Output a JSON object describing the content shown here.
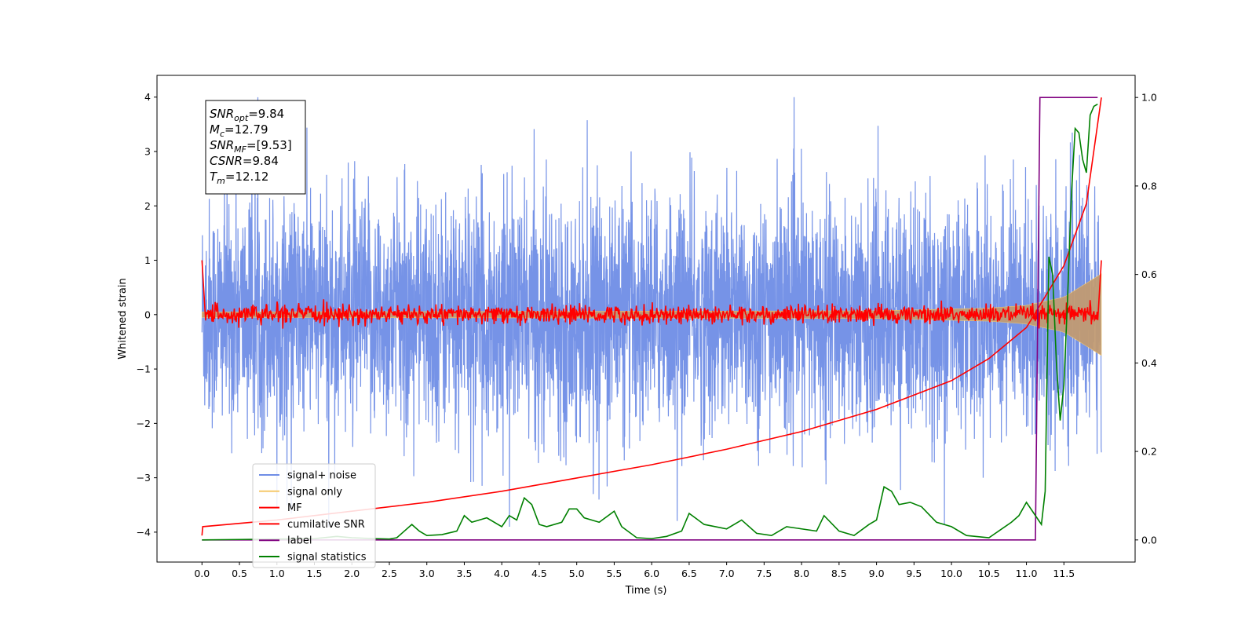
{
  "chart_data": {
    "type": "line",
    "title": "",
    "xlabel": "Time (s)",
    "ylabel": "Whitened strain",
    "xlim": [
      -0.6,
      12.45
    ],
    "ylim": [
      -4.55,
      4.4
    ],
    "y2lim": [
      -0.05,
      1.05
    ],
    "x_ticks": [
      "0.0",
      "0.5",
      "1.0",
      "1.5",
      "2.0",
      "2.5",
      "3.0",
      "3.5",
      "4.0",
      "4.5",
      "5.0",
      "5.5",
      "6.0",
      "6.5",
      "7.0",
      "7.5",
      "8.0",
      "8.5",
      "9.0",
      "9.5",
      "10.0",
      "10.5",
      "11.0",
      "11.5"
    ],
    "y_ticks": [
      "4",
      "3",
      "2",
      "1",
      "0",
      "−1",
      "−2",
      "−3",
      "−4"
    ],
    "y2_ticks": [
      "1.0",
      "0.8",
      "0.6",
      "0.4",
      "0.2",
      "0.0"
    ],
    "grid": false,
    "legend_position": "lower-left",
    "colors": {
      "signal_noise": "#6f8de6",
      "signal_only": "#f5c96b",
      "signal_only_overlap": "#c19b73",
      "mf": "#ff0000",
      "cumulative_snr": "#ff0000",
      "label": "#800080",
      "signal_statistics": "#008000"
    },
    "annotation": {
      "lines": [
        {
          "sym": "SNR",
          "sub": "opt",
          "rest": "=9.84"
        },
        {
          "sym": "M",
          "sub": "c",
          "rest": "=12.79"
        },
        {
          "sym": "SNR",
          "sub": "MF",
          "rest": "=[9.53]"
        },
        {
          "sym": "CSNR",
          "sub": "",
          "rest": "=9.84"
        },
        {
          "sym": "T",
          "sub": "m",
          "rest": "=12.12"
        }
      ]
    },
    "series": [
      {
        "name": "signal+ noise",
        "axis": "left",
        "description_range": [
          -2.5,
          2.6
        ],
        "x_range": [
          0.0,
          12.0
        ]
      },
      {
        "name": "signal only",
        "axis": "left",
        "envelope": [
          [
            0.0,
            0.05
          ],
          [
            9.0,
            0.07
          ],
          [
            10.5,
            0.12
          ],
          [
            11.0,
            0.17
          ],
          [
            11.5,
            0.32
          ],
          [
            12.0,
            0.75
          ]
        ]
      },
      {
        "name": "MF",
        "axis": "left",
        "start": [
          0.0,
          1.0
        ],
        "baseline": 0.0,
        "end": [
          12.0,
          1.0
        ]
      },
      {
        "name": "cumilative SNR",
        "axis": "right",
        "x": [
          0.0,
          0.01,
          1.0,
          2.0,
          3.0,
          4.0,
          5.0,
          6.0,
          7.0,
          8.0,
          9.0,
          10.0,
          10.5,
          11.0,
          11.5,
          11.8,
          12.0
        ],
        "y": [
          0.01,
          0.03,
          0.045,
          0.065,
          0.085,
          0.11,
          0.14,
          0.17,
          0.205,
          0.245,
          0.295,
          0.36,
          0.41,
          0.48,
          0.62,
          0.76,
          1.0
        ]
      },
      {
        "name": "label",
        "axis": "right",
        "x": [
          0.0,
          11.12,
          11.18,
          11.95
        ],
        "y": [
          0.0,
          0.0,
          1.0,
          1.0
        ]
      },
      {
        "name": "signal statistics",
        "axis": "right",
        "x": [
          0.0,
          0.5,
          1.0,
          1.5,
          1.8,
          2.0,
          2.3,
          2.5,
          2.6,
          2.7,
          2.8,
          2.9,
          3.0,
          3.2,
          3.4,
          3.5,
          3.6,
          3.8,
          4.0,
          4.1,
          4.2,
          4.3,
          4.4,
          4.5,
          4.6,
          4.8,
          4.9,
          5.0,
          5.1,
          5.3,
          5.5,
          5.6,
          5.8,
          6.0,
          6.2,
          6.4,
          6.5,
          6.7,
          7.0,
          7.2,
          7.4,
          7.6,
          7.8,
          8.0,
          8.2,
          8.3,
          8.5,
          8.7,
          8.9,
          9.0,
          9.1,
          9.2,
          9.3,
          9.45,
          9.6,
          9.8,
          10.0,
          10.2,
          10.5,
          10.8,
          10.9,
          11.0,
          11.1,
          11.2,
          11.25,
          11.3,
          11.35,
          11.4,
          11.45,
          11.5,
          11.55,
          11.6,
          11.65,
          11.7,
          11.75,
          11.8,
          11.85,
          11.9,
          11.95
        ],
        "y": [
          0.0,
          0.001,
          0.002,
          0.003,
          0.008,
          0.005,
          0.003,
          0.002,
          0.005,
          0.02,
          0.035,
          0.02,
          0.01,
          0.012,
          0.02,
          0.055,
          0.04,
          0.05,
          0.03,
          0.055,
          0.045,
          0.095,
          0.08,
          0.035,
          0.03,
          0.04,
          0.07,
          0.07,
          0.05,
          0.04,
          0.065,
          0.03,
          0.005,
          0.003,
          0.008,
          0.02,
          0.06,
          0.035,
          0.025,
          0.045,
          0.015,
          0.01,
          0.03,
          0.025,
          0.02,
          0.055,
          0.02,
          0.01,
          0.035,
          0.045,
          0.12,
          0.11,
          0.08,
          0.085,
          0.075,
          0.04,
          0.03,
          0.01,
          0.005,
          0.04,
          0.055,
          0.085,
          0.06,
          0.035,
          0.11,
          0.64,
          0.6,
          0.4,
          0.27,
          0.35,
          0.55,
          0.78,
          0.93,
          0.92,
          0.86,
          0.83,
          0.96,
          0.98,
          0.985
        ]
      }
    ]
  }
}
